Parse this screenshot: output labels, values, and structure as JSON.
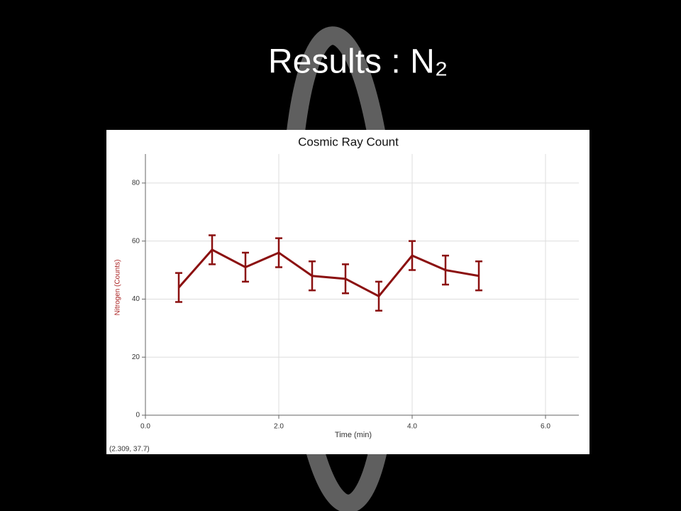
{
  "slide_title": "Results : N₂",
  "chart_data": {
    "type": "line",
    "title": "Cosmic Ray Count",
    "x_label": "Time (min)",
    "y_label": "Nitrogen (Counts)",
    "x": [
      0.5,
      1.0,
      1.5,
      2.0,
      2.5,
      3.0,
      3.5,
      4.0,
      4.5,
      5.0
    ],
    "values": [
      44,
      57,
      51,
      56,
      48,
      47,
      41,
      55,
      50,
      48
    ],
    "errors": [
      5,
      5,
      5,
      5,
      5,
      5,
      5,
      5,
      5,
      5
    ],
    "color": "#8b1010",
    "xlim": [
      0,
      6.5
    ],
    "xticks": [
      {
        "value": 0,
        "label": "0.0"
      },
      {
        "value": 2,
        "label": "2.0"
      },
      {
        "value": 4,
        "label": "4.0"
      },
      {
        "value": 6,
        "label": "6.0"
      }
    ],
    "ylim": [
      0,
      90
    ],
    "yticks": [
      0,
      20,
      40,
      60,
      80
    ],
    "grid": true,
    "cursor_readout": "(2.309, 37.7)"
  }
}
